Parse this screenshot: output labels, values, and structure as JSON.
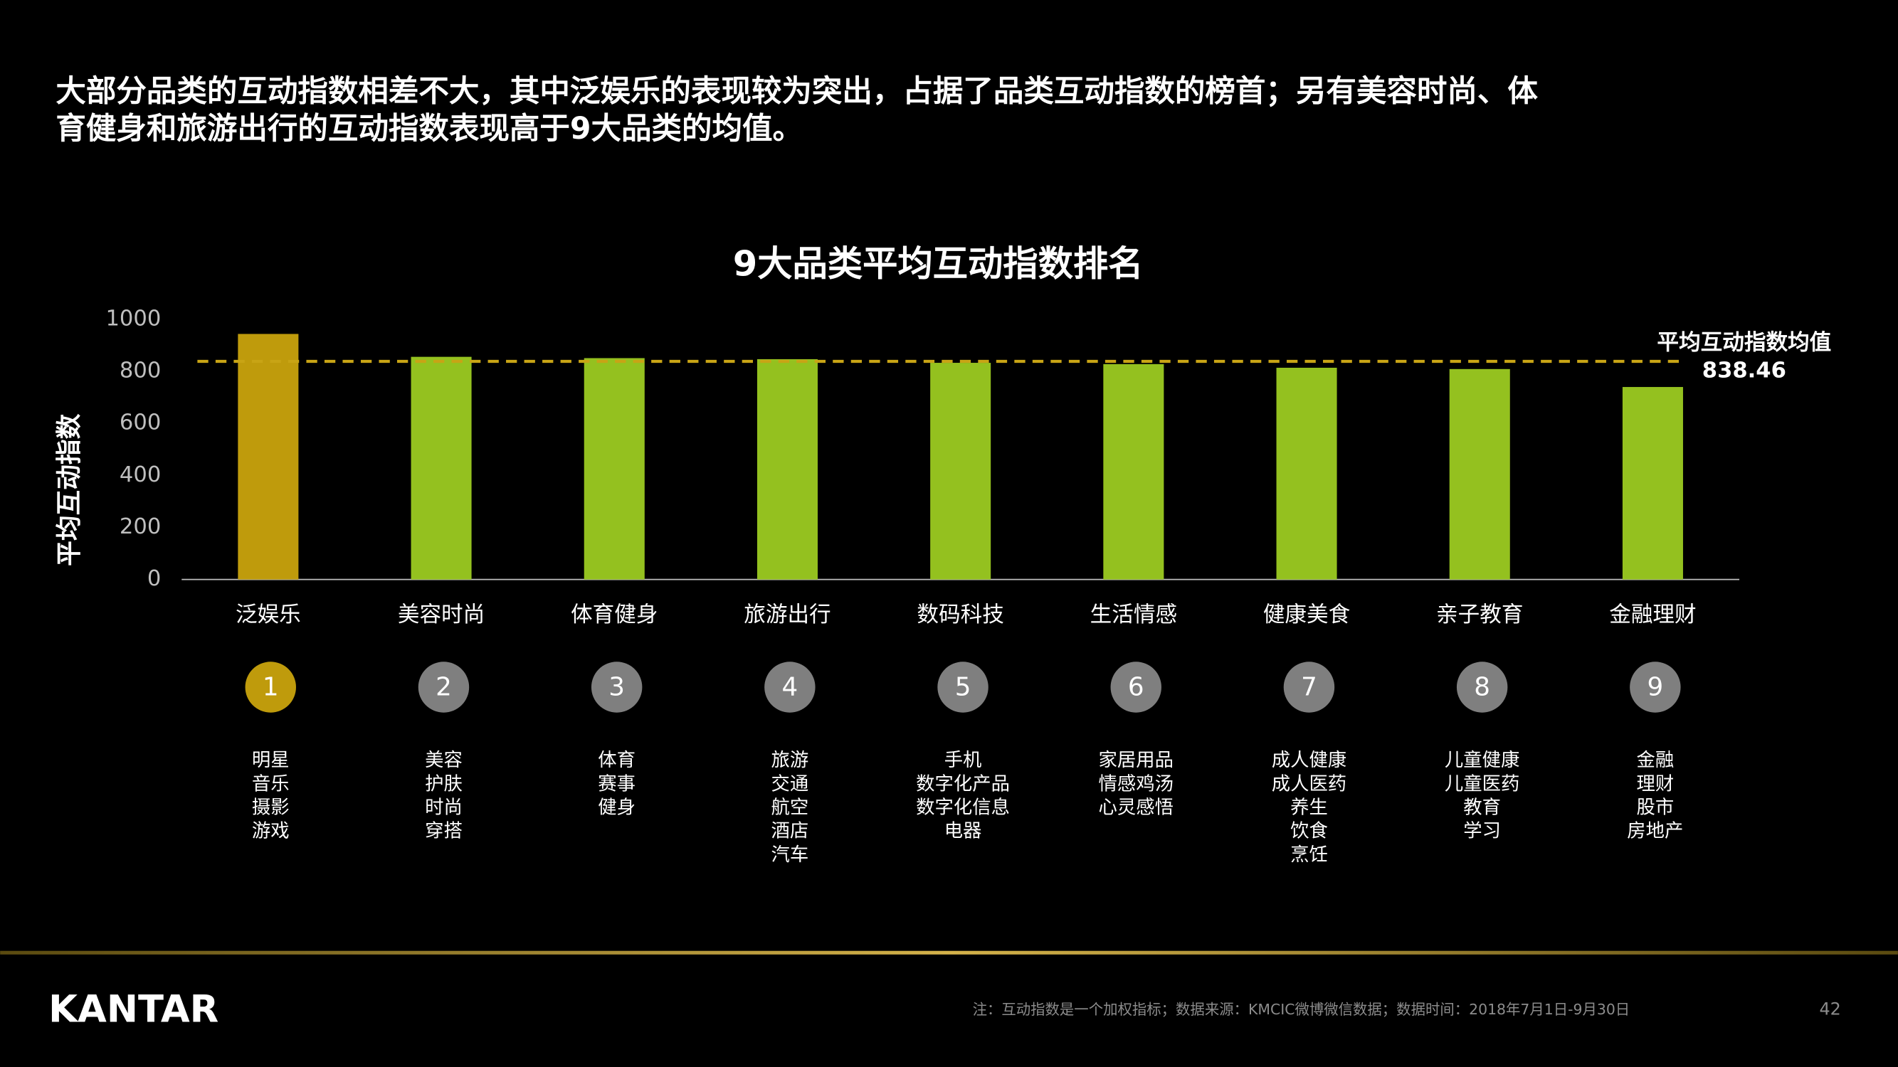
{
  "header": {
    "title_lines": [
      "大部分品类的互动指数相差不大，其中泛娱乐的表现较为突出，占据了品类互动指数的榜首；另有美容时尚、体",
      "育健身和旅游出行的互动指数表现高于9大品类的均值。"
    ]
  },
  "chart_data": {
    "type": "bar",
    "title": "9大品类平均互动指数排名",
    "y_label": "平均互动指数",
    "categories": [
      "泛娱乐",
      "美容时尚",
      "体育健身",
      "旅游出行",
      "数码科技",
      "生活情感",
      "健康美食",
      "亲子教育",
      "金融理财"
    ],
    "values": [
      944,
      856,
      851,
      847,
      833,
      828,
      814,
      809,
      740
    ],
    "colors": [
      "#bf9b0c",
      "#94c11f",
      "#94c11f",
      "#94c11f",
      "#94c11f",
      "#94c11f",
      "#94c11f",
      "#94c11f",
      "#94c11f"
    ],
    "ylim": [
      0,
      1000
    ],
    "yticks": [
      0,
      200,
      400,
      600,
      800,
      1000
    ],
    "grid": false,
    "reference_line": {
      "label": "平均互动指数均值",
      "value": 838.46,
      "color": "#c8a415"
    }
  },
  "ranks": [
    1,
    2,
    3,
    4,
    5,
    6,
    7,
    8,
    9
  ],
  "rank_colors": [
    "#bf9b0c",
    "#7f7f7f",
    "#7f7f7f",
    "#7f7f7f",
    "#7f7f7f",
    "#7f7f7f",
    "#7f7f7f",
    "#7f7f7f",
    "#7f7f7f"
  ],
  "subcategories": [
    [
      "明星",
      "音乐",
      "摄影",
      "游戏"
    ],
    [
      "美容",
      "护肤",
      "时尚",
      "穿搭"
    ],
    [
      "体育",
      "赛事",
      "健身"
    ],
    [
      "旅游",
      "交通",
      "航空",
      "酒店",
      "汽车"
    ],
    [
      "手机",
      "数字化产品",
      "数字化信息",
      "电器"
    ],
    [
      "家居用品",
      "情感鸡汤",
      "心灵感悟"
    ],
    [
      "成人健康",
      "成人医药",
      "养生",
      "饮食",
      "烹饪"
    ],
    [
      "儿童健康",
      "儿童医药",
      "教育",
      "学习"
    ],
    [
      "金融",
      "理财",
      "股市",
      "房地产"
    ]
  ],
  "footer": {
    "logo": "KANTAR",
    "note": "注：互动指数是一个加权指标；数据来源：KMCIC微博微信数据；数据时间：2018年7月1日-9月30日",
    "page": "42"
  }
}
